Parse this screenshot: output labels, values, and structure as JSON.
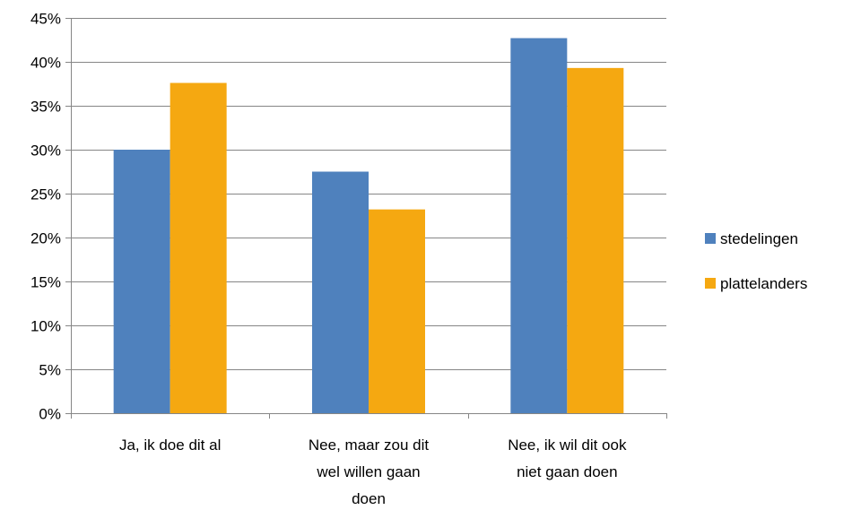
{
  "chart_data": {
    "type": "bar",
    "categories": [
      [
        "Ja, ik doe dit al"
      ],
      [
        "Nee, maar zou dit",
        "wel willen gaan",
        "doen"
      ],
      [
        "Nee, ik wil dit ook",
        "niet gaan doen"
      ]
    ],
    "series": [
      {
        "name": "stedelingen",
        "color": "#4F81BD",
        "values": [
          30.0,
          27.5,
          42.7
        ]
      },
      {
        "name": "plattelanders",
        "color": "#F5A811",
        "values": [
          37.6,
          23.2,
          39.3
        ]
      }
    ],
    "ylim": [
      0,
      45
    ],
    "yticks": [
      0,
      5,
      10,
      15,
      20,
      25,
      30,
      35,
      40,
      45
    ],
    "ytick_labels": [
      "0%",
      "5%",
      "10%",
      "15%",
      "20%",
      "25%",
      "30%",
      "35%",
      "40%",
      "45%"
    ],
    "grid": true,
    "gridline_color": "#868686",
    "legend_position": "right"
  }
}
